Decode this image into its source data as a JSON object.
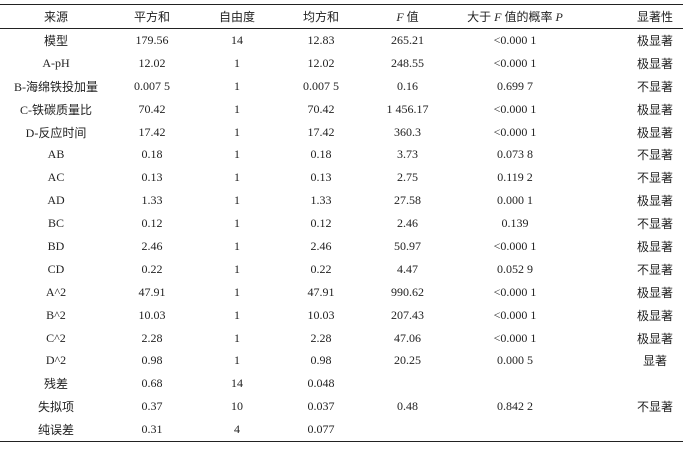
{
  "table": {
    "headers": [
      "来源",
      "平方和",
      "自由度",
      "均方和",
      "F",
      "值",
      "大于",
      "F",
      "值的概率",
      "P",
      "显著性"
    ],
    "header_cells": {
      "source": "来源",
      "ss": "平方和",
      "df": "自由度",
      "ms": "均方和",
      "f_var": "F",
      "f_suffix": " 值",
      "p_prefix": "大于 ",
      "p_f": "F",
      "p_mid": " 值的概率 ",
      "p_var": "P",
      "sig": "显著性"
    },
    "rows": [
      [
        "模型",
        "179.56",
        "14",
        "12.83",
        "265.21",
        "<0.000 1",
        "极显著"
      ],
      [
        "A-pH",
        "12.02",
        "1",
        "12.02",
        "248.55",
        "<0.000 1",
        "极显著"
      ],
      [
        "B-海绵铁投加量",
        "0.007 5",
        "1",
        "0.007 5",
        "0.16",
        "0.699 7",
        "不显著"
      ],
      [
        "C-铁碳质量比",
        "70.42",
        "1",
        "70.42",
        "1 456.17",
        "<0.000 1",
        "极显著"
      ],
      [
        "D-反应时间",
        "17.42",
        "1",
        "17.42",
        "360.3",
        "<0.000 1",
        "极显著"
      ],
      [
        "AB",
        "0.18",
        "1",
        "0.18",
        "3.73",
        "0.073 8",
        "不显著"
      ],
      [
        "AC",
        "0.13",
        "1",
        "0.13",
        "2.75",
        "0.119 2",
        "不显著"
      ],
      [
        "AD",
        "1.33",
        "1",
        "1.33",
        "27.58",
        "0.000 1",
        "极显著"
      ],
      [
        "BC",
        "0.12",
        "1",
        "0.12",
        "2.46",
        "0.139",
        "不显著"
      ],
      [
        "BD",
        "2.46",
        "1",
        "2.46",
        "50.97",
        "<0.000 1",
        "极显著"
      ],
      [
        "CD",
        "0.22",
        "1",
        "0.22",
        "4.47",
        "0.052 9",
        "不显著"
      ],
      [
        "A^2",
        "47.91",
        "1",
        "47.91",
        "990.62",
        "<0.000 1",
        "极显著"
      ],
      [
        "B^2",
        "10.03",
        "1",
        "10.03",
        "207.43",
        "<0.000 1",
        "极显著"
      ],
      [
        "C^2",
        "2.28",
        "1",
        "2.28",
        "47.06",
        "<0.000 1",
        "极显著"
      ],
      [
        "D^2",
        "0.98",
        "1",
        "0.98",
        "20.25",
        "0.000 5",
        "显著"
      ],
      [
        "残差",
        "0.68",
        "14",
        "0.048",
        "",
        "",
        ""
      ],
      [
        "失拟项",
        "0.37",
        "10",
        "0.037",
        "0.48",
        "0.842 2",
        "不显著"
      ],
      [
        "纯误差",
        "0.31",
        "4",
        "0.077",
        "",
        "",
        ""
      ]
    ]
  }
}
